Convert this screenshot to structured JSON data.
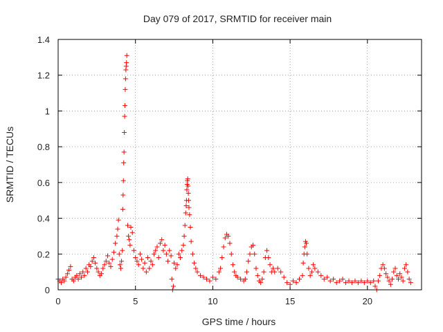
{
  "chart_data": {
    "type": "scatter",
    "title": "Day 079 of 2017, SRMTID for receiver main",
    "xlabel": "GPS time / hours",
    "ylabel": "SRMTID / TECUs",
    "xlim": [
      0,
      23.5
    ],
    "ylim": [
      0,
      1.4
    ],
    "xticks": [
      0,
      5,
      10,
      15,
      20
    ],
    "yticks": [
      0,
      0.2,
      0.4,
      0.6,
      0.8,
      1,
      1.2,
      1.4
    ],
    "ytick_labels": [
      "0",
      "0.2",
      "0.4",
      "0.6",
      "0.8",
      "1",
      "1.2",
      "1.4"
    ],
    "grid": true,
    "marker": "+",
    "color": "#ff0000",
    "series": [
      {
        "name": "SRMTID",
        "points": [
          [
            0.0,
            0.06
          ],
          [
            0.1,
            0.05
          ],
          [
            0.2,
            0.04
          ],
          [
            0.3,
            0.06
          ],
          [
            0.4,
            0.05
          ],
          [
            0.5,
            0.07
          ],
          [
            0.6,
            0.09
          ],
          [
            0.7,
            0.11
          ],
          [
            0.8,
            0.13
          ],
          [
            0.9,
            0.06
          ],
          [
            1.0,
            0.05
          ],
          [
            1.1,
            0.07
          ],
          [
            1.2,
            0.08
          ],
          [
            1.3,
            0.06
          ],
          [
            1.4,
            0.09
          ],
          [
            1.5,
            0.07
          ],
          [
            1.6,
            0.1
          ],
          [
            1.7,
            0.08
          ],
          [
            1.8,
            0.12
          ],
          [
            1.9,
            0.1
          ],
          [
            2.0,
            0.14
          ],
          [
            2.1,
            0.13
          ],
          [
            2.2,
            0.16
          ],
          [
            2.3,
            0.18
          ],
          [
            2.4,
            0.15
          ],
          [
            2.5,
            0.12
          ],
          [
            2.6,
            0.1
          ],
          [
            2.7,
            0.08
          ],
          [
            2.8,
            0.09
          ],
          [
            2.9,
            0.12
          ],
          [
            3.0,
            0.14
          ],
          [
            3.1,
            0.16
          ],
          [
            3.2,
            0.19
          ],
          [
            3.3,
            0.15
          ],
          [
            3.4,
            0.13
          ],
          [
            3.5,
            0.17
          ],
          [
            3.6,
            0.21
          ],
          [
            3.7,
            0.26
          ],
          [
            3.8,
            0.3
          ],
          [
            3.85,
            0.34
          ],
          [
            3.9,
            0.39
          ],
          [
            3.95,
            0.2
          ],
          [
            4.0,
            0.14
          ],
          [
            4.05,
            0.12
          ],
          [
            4.1,
            0.16
          ],
          [
            4.15,
            0.22
          ],
          [
            4.18,
            0.45
          ],
          [
            4.2,
            0.53
          ],
          [
            4.22,
            0.61
          ],
          [
            4.24,
            0.71
          ],
          [
            4.26,
            0.77
          ],
          [
            4.28,
            0.88
          ],
          [
            4.3,
            0.97
          ],
          [
            4.32,
            1.03
          ],
          [
            4.34,
            1.12
          ],
          [
            4.36,
            1.18
          ],
          [
            4.38,
            1.23
          ],
          [
            4.4,
            1.25
          ],
          [
            4.42,
            1.27
          ],
          [
            4.44,
            1.31
          ],
          [
            4.5,
            0.36
          ],
          [
            4.55,
            0.3
          ],
          [
            4.6,
            0.28
          ],
          [
            4.65,
            0.25
          ],
          [
            4.7,
            0.35
          ],
          [
            4.8,
            0.32
          ],
          [
            4.9,
            0.22
          ],
          [
            5.0,
            0.18
          ],
          [
            5.1,
            0.16
          ],
          [
            5.2,
            0.14
          ],
          [
            5.3,
            0.2
          ],
          [
            5.4,
            0.17
          ],
          [
            5.5,
            0.12
          ],
          [
            5.6,
            0.15
          ],
          [
            5.7,
            0.1
          ],
          [
            5.8,
            0.18
          ],
          [
            5.9,
            0.12
          ],
          [
            6.0,
            0.16
          ],
          [
            6.1,
            0.14
          ],
          [
            6.2,
            0.2
          ],
          [
            6.3,
            0.22
          ],
          [
            6.4,
            0.24
          ],
          [
            6.5,
            0.18
          ],
          [
            6.6,
            0.26
          ],
          [
            6.7,
            0.28
          ],
          [
            6.8,
            0.22
          ],
          [
            6.9,
            0.25
          ],
          [
            7.0,
            0.2
          ],
          [
            7.1,
            0.16
          ],
          [
            7.2,
            0.22
          ],
          [
            7.3,
            0.19
          ],
          [
            7.35,
            0.06
          ],
          [
            7.4,
            0.0
          ],
          [
            7.45,
            0.02
          ],
          [
            7.5,
            0.15
          ],
          [
            7.6,
            0.12
          ],
          [
            7.7,
            0.14
          ],
          [
            7.8,
            0.2
          ],
          [
            7.9,
            0.18
          ],
          [
            8.0,
            0.22
          ],
          [
            8.1,
            0.25
          ],
          [
            8.15,
            0.3
          ],
          [
            8.2,
            0.36
          ],
          [
            8.25,
            0.43
          ],
          [
            8.28,
            0.47
          ],
          [
            8.3,
            0.5
          ],
          [
            8.32,
            0.56
          ],
          [
            8.34,
            0.59
          ],
          [
            8.36,
            0.61
          ],
          [
            8.38,
            0.62
          ],
          [
            8.4,
            0.58
          ],
          [
            8.42,
            0.54
          ],
          [
            8.44,
            0.5
          ],
          [
            8.46,
            0.46
          ],
          [
            8.5,
            0.42
          ],
          [
            8.55,
            0.35
          ],
          [
            8.6,
            0.27
          ],
          [
            8.7,
            0.2
          ],
          [
            8.8,
            0.15
          ],
          [
            8.9,
            0.12
          ],
          [
            9.0,
            0.1
          ],
          [
            9.2,
            0.08
          ],
          [
            9.4,
            0.07
          ],
          [
            9.6,
            0.06
          ],
          [
            9.8,
            0.05
          ],
          [
            10.0,
            0.07
          ],
          [
            10.2,
            0.06
          ],
          [
            10.4,
            0.1
          ],
          [
            10.5,
            0.12
          ],
          [
            10.6,
            0.18
          ],
          [
            10.7,
            0.24
          ],
          [
            10.8,
            0.29
          ],
          [
            10.9,
            0.31
          ],
          [
            11.0,
            0.3
          ],
          [
            11.1,
            0.26
          ],
          [
            11.2,
            0.2
          ],
          [
            11.3,
            0.14
          ],
          [
            11.4,
            0.1
          ],
          [
            11.5,
            0.08
          ],
          [
            11.6,
            0.07
          ],
          [
            11.8,
            0.06
          ],
          [
            12.0,
            0.05
          ],
          [
            12.1,
            0.06
          ],
          [
            12.2,
            0.1
          ],
          [
            12.3,
            0.16
          ],
          [
            12.4,
            0.2
          ],
          [
            12.5,
            0.24
          ],
          [
            12.6,
            0.25
          ],
          [
            12.7,
            0.2
          ],
          [
            12.8,
            0.12
          ],
          [
            12.9,
            0.08
          ],
          [
            13.0,
            0.05
          ],
          [
            13.1,
            0.04
          ],
          [
            13.2,
            0.06
          ],
          [
            13.3,
            0.1
          ],
          [
            13.4,
            0.18
          ],
          [
            13.5,
            0.22
          ],
          [
            13.6,
            0.18
          ],
          [
            13.7,
            0.14
          ],
          [
            13.8,
            0.1
          ],
          [
            13.9,
            0.12
          ],
          [
            14.0,
            0.1
          ],
          [
            14.2,
            0.12
          ],
          [
            14.4,
            0.1
          ],
          [
            14.6,
            0.07
          ],
          [
            14.8,
            0.04
          ],
          [
            15.0,
            0.03
          ],
          [
            15.2,
            0.05
          ],
          [
            15.4,
            0.04
          ],
          [
            15.6,
            0.06
          ],
          [
            15.8,
            0.08
          ],
          [
            15.85,
            0.15
          ],
          [
            15.9,
            0.2
          ],
          [
            15.95,
            0.24
          ],
          [
            16.0,
            0.27
          ],
          [
            16.05,
            0.26
          ],
          [
            16.1,
            0.2
          ],
          [
            16.2,
            0.12
          ],
          [
            16.3,
            0.08
          ],
          [
            16.4,
            0.1
          ],
          [
            16.5,
            0.14
          ],
          [
            16.6,
            0.12
          ],
          [
            16.8,
            0.1
          ],
          [
            17.0,
            0.08
          ],
          [
            17.2,
            0.06
          ],
          [
            17.4,
            0.07
          ],
          [
            17.6,
            0.05
          ],
          [
            17.8,
            0.06
          ],
          [
            18.0,
            0.04
          ],
          [
            18.2,
            0.05
          ],
          [
            18.4,
            0.06
          ],
          [
            18.6,
            0.04
          ],
          [
            18.8,
            0.05
          ],
          [
            19.0,
            0.04
          ],
          [
            19.2,
            0.05
          ],
          [
            19.4,
            0.04
          ],
          [
            19.6,
            0.05
          ],
          [
            19.8,
            0.04
          ],
          [
            20.0,
            0.05
          ],
          [
            20.2,
            0.04
          ],
          [
            20.4,
            0.05
          ],
          [
            20.5,
            0.02
          ],
          [
            20.6,
            0.0
          ],
          [
            20.7,
            0.05
          ],
          [
            20.8,
            0.08
          ],
          [
            20.9,
            0.12
          ],
          [
            21.0,
            0.14
          ],
          [
            21.1,
            0.12
          ],
          [
            21.2,
            0.09
          ],
          [
            21.3,
            0.07
          ],
          [
            21.4,
            0.05
          ],
          [
            21.5,
            0.03
          ],
          [
            21.6,
            0.06
          ],
          [
            21.7,
            0.1
          ],
          [
            21.8,
            0.12
          ],
          [
            21.9,
            0.08
          ],
          [
            22.0,
            0.06
          ],
          [
            22.1,
            0.09
          ],
          [
            22.2,
            0.07
          ],
          [
            22.3,
            0.05
          ],
          [
            22.4,
            0.12
          ],
          [
            22.5,
            0.14
          ],
          [
            22.6,
            0.1
          ],
          [
            22.7,
            0.06
          ],
          [
            22.8,
            0.04
          ]
        ]
      }
    ]
  }
}
